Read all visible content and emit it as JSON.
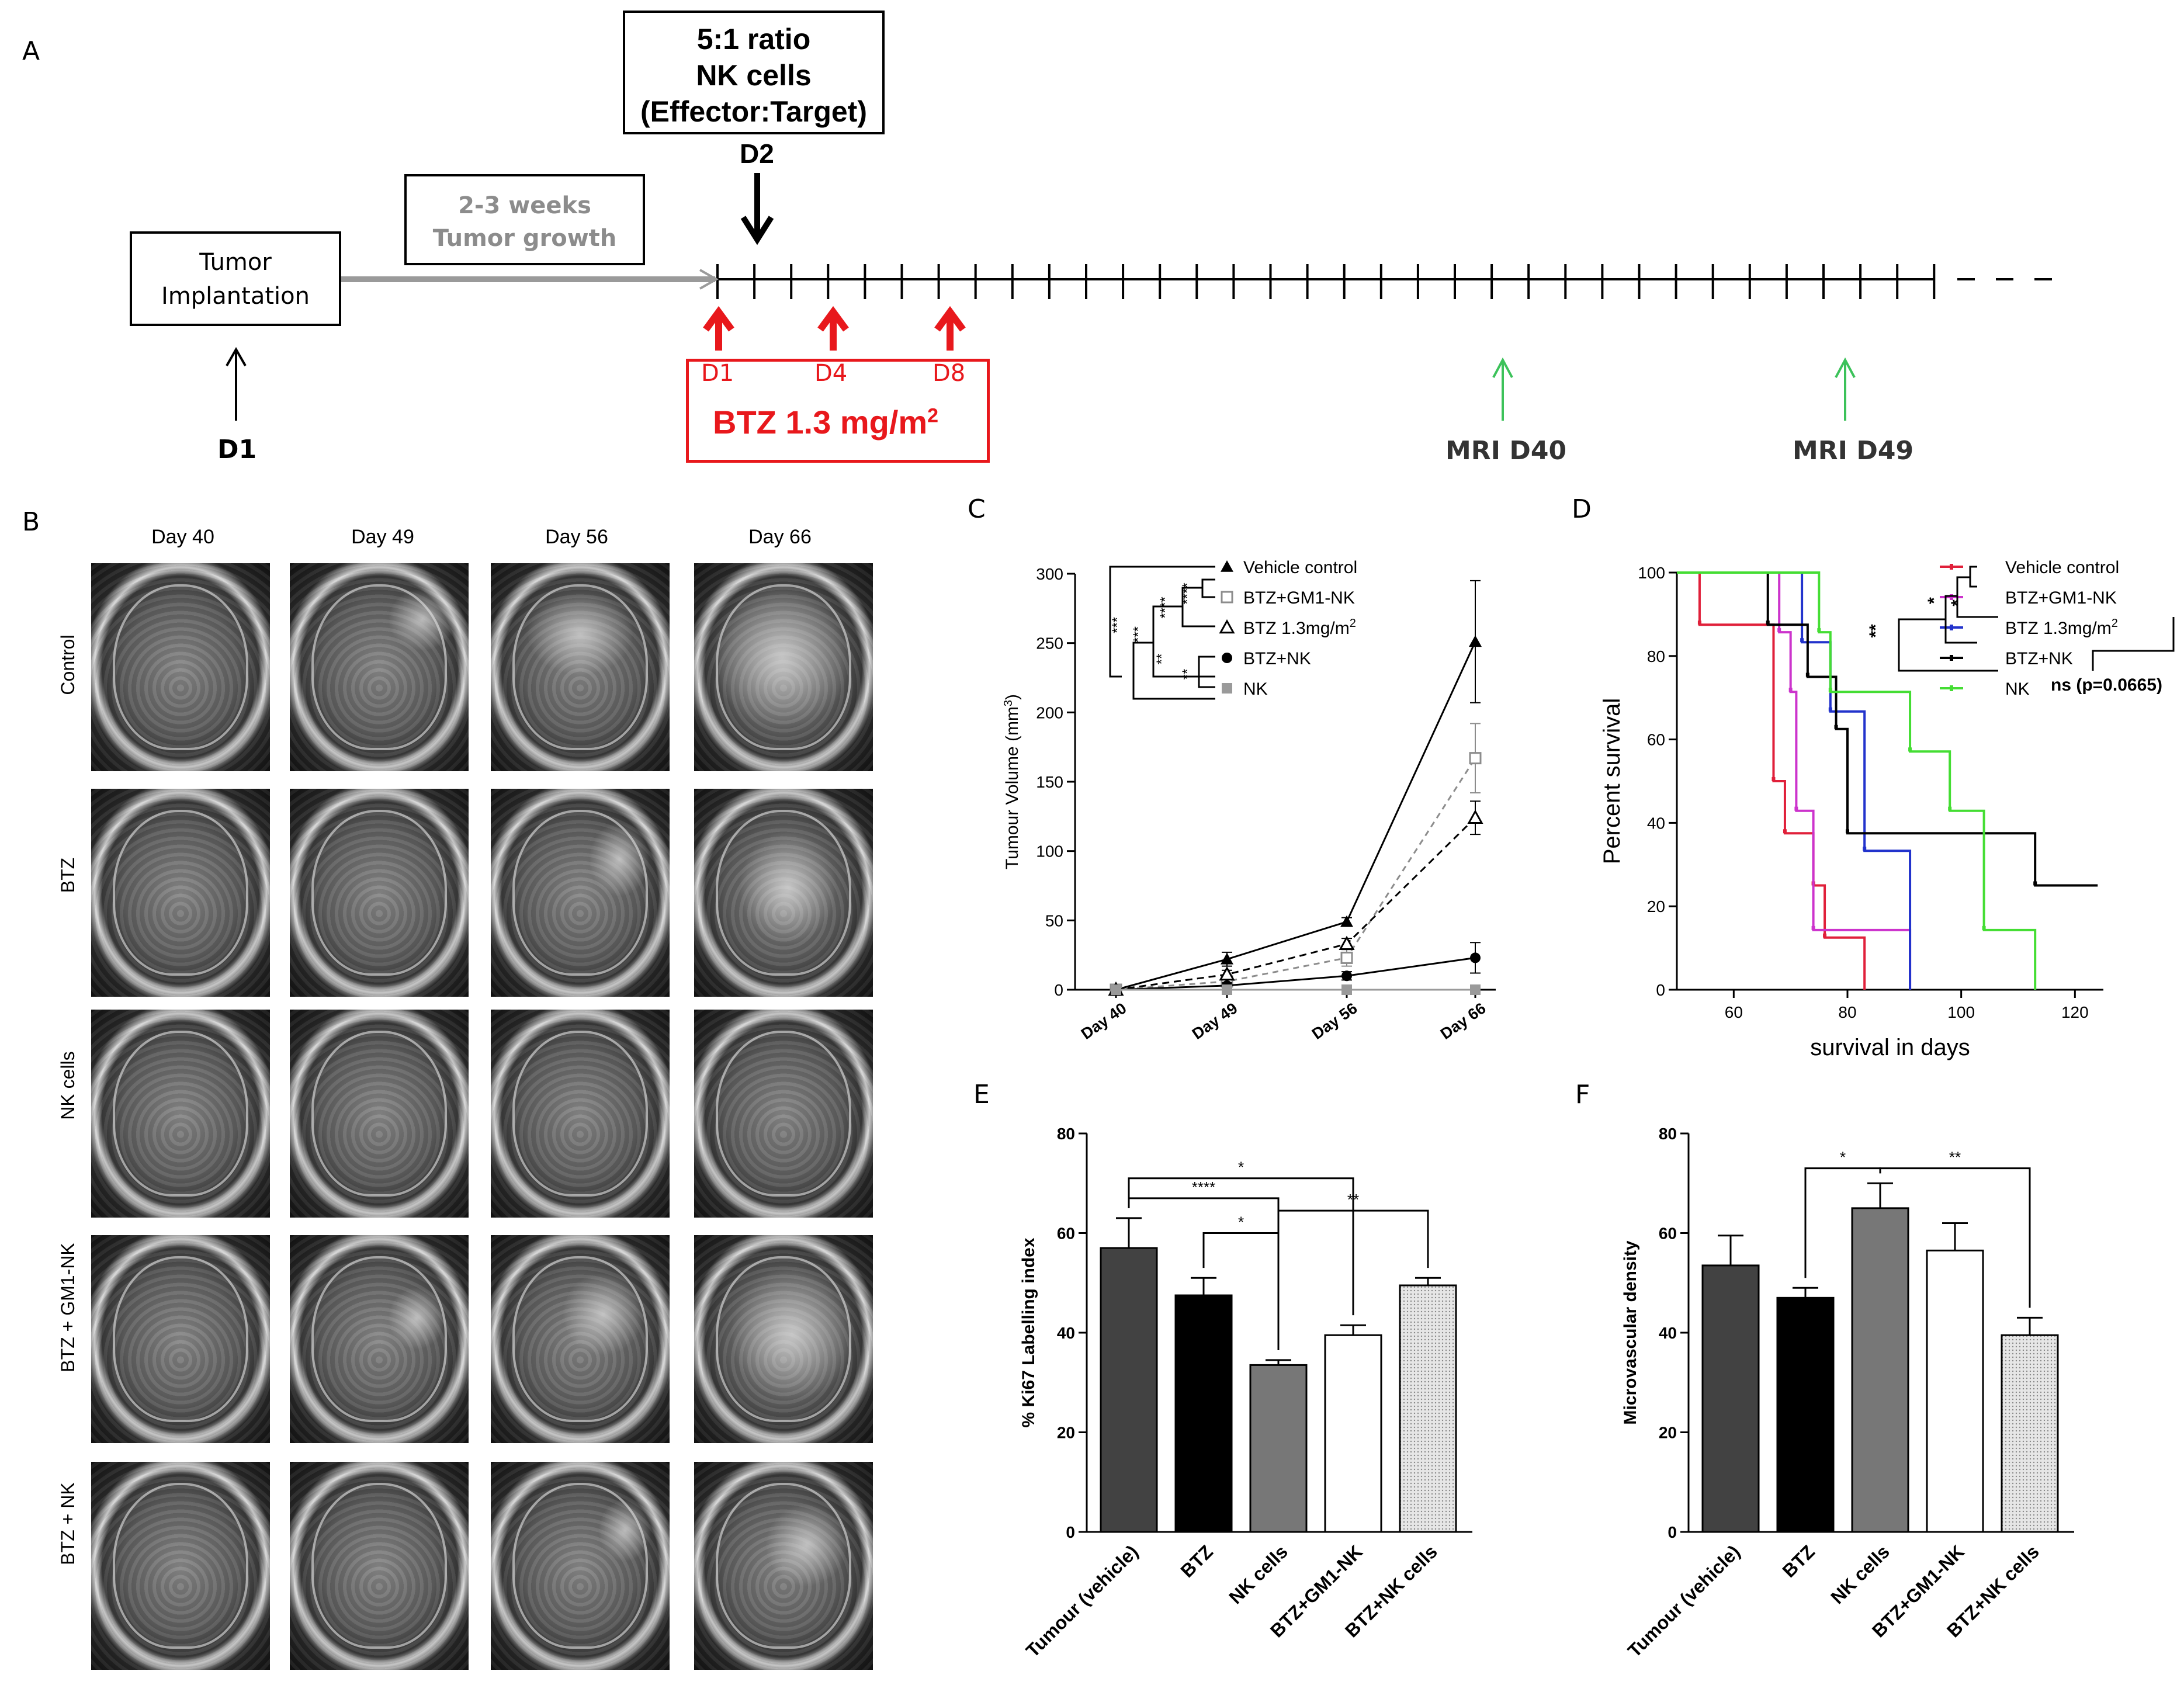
{
  "panel_letters": {
    "a": "A",
    "b": "B",
    "c": "C",
    "d": "D",
    "e": "E",
    "f": "F"
  },
  "timeline": {
    "nk_box_line1": "5:1 ratio",
    "nk_box_line2": "NK cells",
    "nk_box_line3": "(Effector:Target)",
    "nk_day": "D2",
    "growth_box_line1": "2-3 weeks",
    "growth_box_line2": "Tumor growth",
    "implant_box_line1": "Tumor",
    "implant_box_line2": "Implantation",
    "implant_day": "D1",
    "btz_days": [
      "D1",
      "D4",
      "D8"
    ],
    "btz_label": "BTZ 1.3 mg/m",
    "btz_sup": "2",
    "mri_labels": [
      "MRI D40",
      "MRI D49"
    ],
    "colors": {
      "red": "#e8181c",
      "green": "#3cc25a",
      "grey": "#8c8c8c"
    }
  },
  "mri_panel": {
    "columns": [
      "Day 40",
      "Day 49",
      "Day 56",
      "Day 66"
    ],
    "rows": [
      "Control",
      "BTZ",
      "NK cells",
      "BTZ + GM1-NK",
      "BTZ + NK"
    ]
  },
  "chart_data": [
    {
      "id": "C",
      "type": "line",
      "ylabel": "Tumour Volume (mm",
      "ylabel_sup": "3",
      "ylabel_end": ")",
      "categories": [
        "Day 40",
        "Day 49",
        "Day 56",
        "Day 66"
      ],
      "ylim": [
        0,
        300
      ],
      "yticks": [
        "0",
        "50",
        "100",
        "150",
        "200",
        "250",
        "300"
      ],
      "series": [
        {
          "name": "Vehicle control",
          "values": [
            0,
            22,
            49,
            251
          ],
          "errors": [
            0,
            5,
            3,
            44
          ],
          "color": "#000000",
          "dash": "",
          "marker": "triangle-filled"
        },
        {
          "name": "BTZ+GM1-NK",
          "values": [
            0,
            6,
            23,
            167
          ],
          "errors": [
            0,
            3,
            6,
            25
          ],
          "color": "#8c8c8c",
          "dash": "10,8",
          "marker": "square-open"
        },
        {
          "name": "BTZ 1.3mg/m",
          "name_sup": "2",
          "values": [
            0,
            11,
            33,
            124
          ],
          "errors": [
            0,
            3,
            4,
            12
          ],
          "color": "#000000",
          "dash": "12,8",
          "marker": "triangle-open"
        },
        {
          "name": "BTZ+NK",
          "values": [
            0,
            3,
            10,
            23
          ],
          "errors": [
            0,
            2,
            3,
            11
          ],
          "color": "#000000",
          "dash": "",
          "marker": "circle-filled"
        },
        {
          "name": "NK",
          "values": [
            0,
            0,
            0,
            0
          ],
          "errors": [
            0,
            0,
            0,
            0
          ],
          "color": "#9a9a9a",
          "dash": "",
          "marker": "square-filled"
        }
      ],
      "significance": [
        "****",
        "****",
        "***",
        "***",
        "**",
        "**"
      ]
    },
    {
      "id": "D",
      "type": "line",
      "subtype": "survival-step",
      "xlabel": "survival in days",
      "ylabel": "Percent survival",
      "xlim": [
        50,
        125
      ],
      "ylim": [
        0,
        100
      ],
      "xticks": [
        "60",
        "80",
        "100",
        "120"
      ],
      "yticks": [
        "0",
        "20",
        "40",
        "60",
        "80",
        "100"
      ],
      "series": [
        {
          "name": "Vehicle control",
          "color": "#e0203a",
          "steps": [
            [
              50,
              100
            ],
            [
              54,
              100
            ],
            [
              54,
              87.5
            ],
            [
              67,
              87.5
            ],
            [
              67,
              50
            ],
            [
              69,
              50
            ],
            [
              69,
              37.5
            ],
            [
              74,
              37.5
            ],
            [
              74,
              25
            ],
            [
              76,
              25
            ],
            [
              76,
              12.5
            ],
            [
              83,
              12.5
            ],
            [
              83,
              0
            ]
          ]
        },
        {
          "name": "BTZ+GM1-NK",
          "color": "#cc33cc",
          "steps": [
            [
              50,
              100
            ],
            [
              68,
              100
            ],
            [
              68,
              85.7
            ],
            [
              70,
              85.7
            ],
            [
              70,
              71.4
            ],
            [
              71,
              71.4
            ],
            [
              71,
              42.9
            ],
            [
              74,
              42.9
            ],
            [
              74,
              14.3
            ],
            [
              91,
              14.3
            ],
            [
              91,
              0
            ]
          ]
        },
        {
          "name": "BTZ 1.3mg/m",
          "name_sup": "2",
          "color": "#2233cc",
          "steps": [
            [
              50,
              100
            ],
            [
              72,
              100
            ],
            [
              72,
              83.3
            ],
            [
              77,
              83.3
            ],
            [
              77,
              66.7
            ],
            [
              83,
              66.7
            ],
            [
              83,
              33.3
            ],
            [
              91,
              33.3
            ],
            [
              91,
              0
            ]
          ]
        },
        {
          "name": "BTZ+NK",
          "color": "#000000",
          "steps": [
            [
              50,
              100
            ],
            [
              66,
              100
            ],
            [
              66,
              87.5
            ],
            [
              73,
              87.5
            ],
            [
              73,
              75
            ],
            [
              78,
              75
            ],
            [
              78,
              62.5
            ],
            [
              80,
              62.5
            ],
            [
              80,
              37.5
            ],
            [
              113,
              37.5
            ],
            [
              113,
              25
            ],
            [
              124,
              25
            ]
          ]
        },
        {
          "name": "NK",
          "color": "#44dd33",
          "steps": [
            [
              50,
              100
            ],
            [
              75,
              100
            ],
            [
              75,
              85.7
            ],
            [
              77,
              85.7
            ],
            [
              77,
              71.4
            ],
            [
              91,
              71.4
            ],
            [
              91,
              57.1
            ],
            [
              98,
              57.1
            ],
            [
              98,
              42.9
            ],
            [
              104,
              42.9
            ],
            [
              104,
              14.3
            ],
            [
              113,
              14.3
            ],
            [
              113,
              0
            ]
          ]
        }
      ],
      "significance": [
        "**",
        "*",
        "*"
      ],
      "ns_label": "ns (p=0.0665)"
    },
    {
      "id": "E",
      "type": "bar",
      "ylabel": "% Ki67 Labelling index",
      "categories": [
        "Tumour (vehicle)",
        "BTZ",
        "NK cells",
        "BTZ+GM1-NK",
        "BTZ+NK cells"
      ],
      "values": [
        57,
        47.5,
        33.5,
        39.5,
        49.5
      ],
      "errors": [
        6,
        3.5,
        1,
        2,
        1.5
      ],
      "ylim": [
        0,
        80
      ],
      "yticks": [
        "0",
        "20",
        "40",
        "60",
        "80"
      ],
      "significance": [
        "*",
        "****",
        "*",
        "**"
      ]
    },
    {
      "id": "F",
      "type": "bar",
      "ylabel": "Microvascular density",
      "categories": [
        "Tumour (vehicle)",
        "BTZ",
        "NK cells",
        "BTZ+GM1-NK",
        "BTZ+NK cells"
      ],
      "values": [
        53.5,
        47,
        65,
        56.5,
        39.5
      ],
      "errors": [
        6,
        2,
        5,
        5.5,
        3.5
      ],
      "ylim": [
        0,
        80
      ],
      "yticks": [
        "0",
        "20",
        "40",
        "60",
        "80"
      ],
      "significance": [
        "*",
        "**"
      ]
    }
  ]
}
